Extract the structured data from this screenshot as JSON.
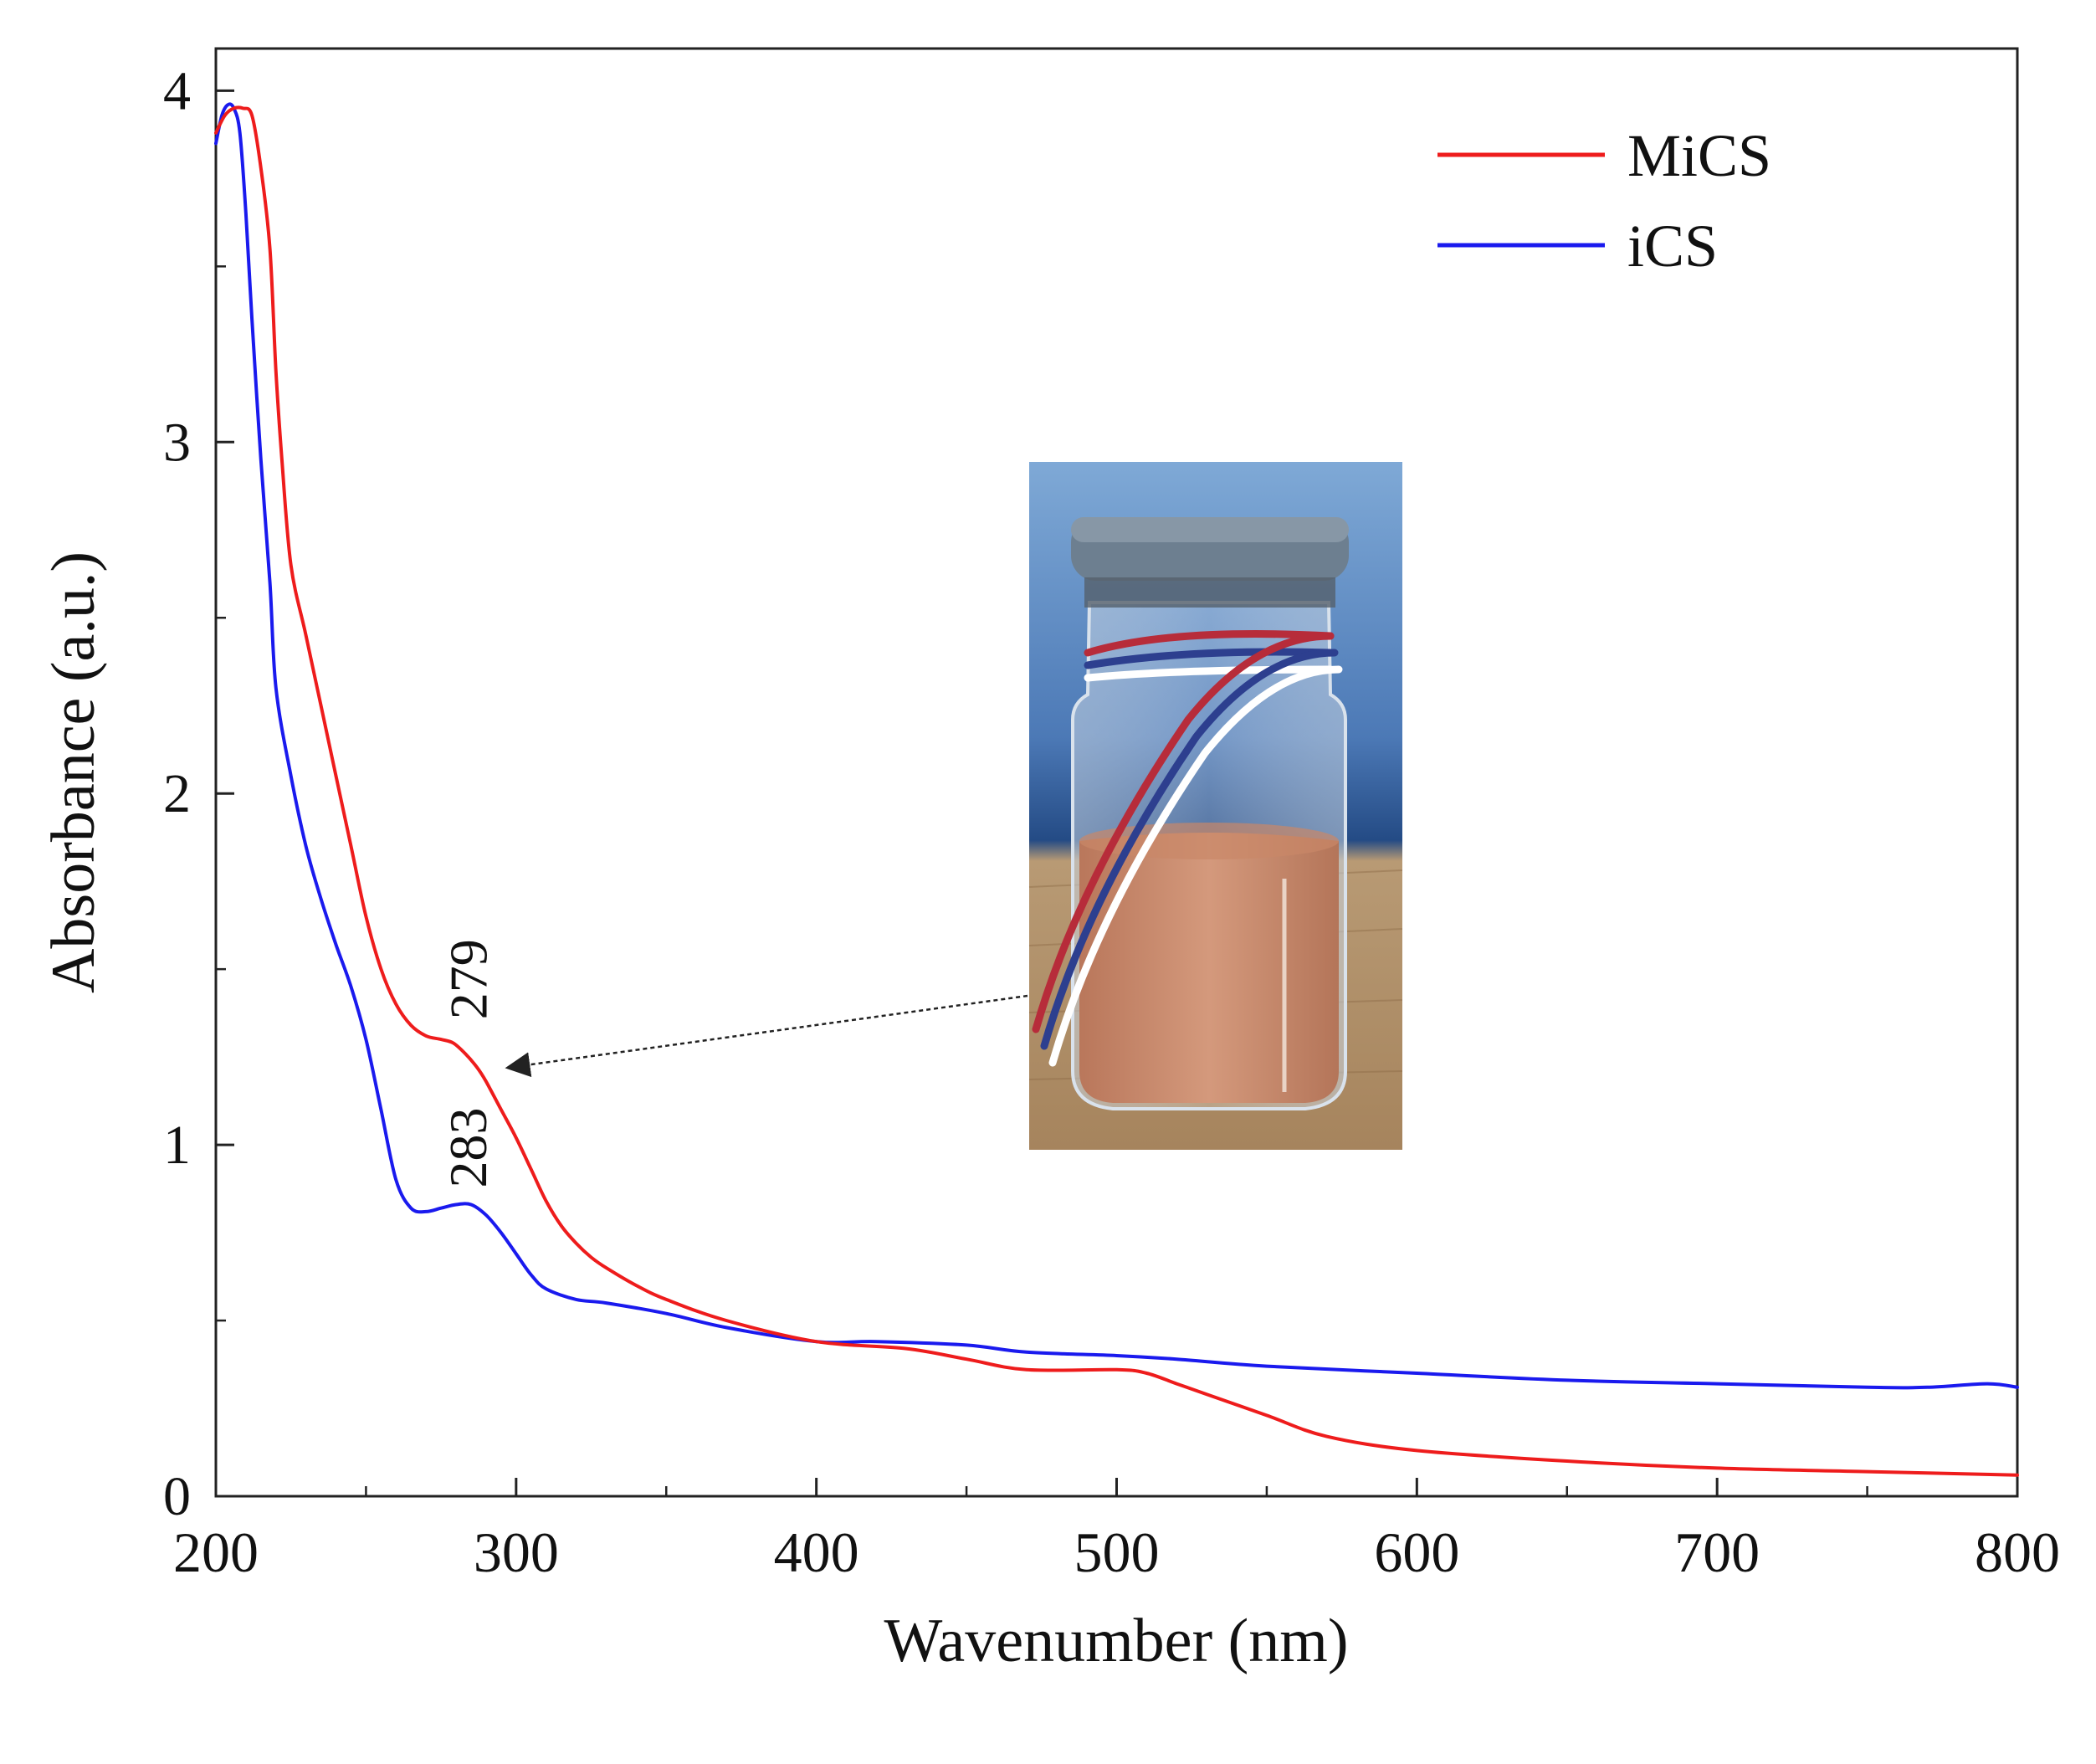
{
  "chart_data": {
    "type": "line",
    "title": "",
    "xlabel": "Wavenumber (nm)",
    "ylabel": "Absorbance (a.u.)",
    "xlim": [
      200,
      800
    ],
    "ylim": [
      0,
      4.12
    ],
    "xticks": [
      200,
      300,
      400,
      500,
      600,
      700,
      800
    ],
    "xtick_labels": [
      "200",
      "300",
      "400",
      "500",
      "600",
      "700",
      "800"
    ],
    "yticks": [
      0,
      1,
      2,
      3,
      4
    ],
    "ytick_labels": [
      "0",
      "1",
      "2",
      "3",
      "4"
    ],
    "grid": false,
    "legend_position": "top-right",
    "series": [
      {
        "name": "MiCS",
        "color": "#ee1c1c",
        "x": [
          200,
          203,
          206,
          209,
          212,
          215,
          218,
          220,
          222,
          225,
          230,
          235,
          240,
          245,
          250,
          255,
          260,
          265,
          270,
          275,
          279,
          283,
          287,
          290,
          295,
          300,
          305,
          310,
          315,
          320,
          325,
          330,
          340,
          350,
          370,
          400,
          430,
          450,
          470,
          500,
          510,
          520,
          530,
          550,
          570,
          600,
          650,
          700,
          750,
          800
        ],
        "y": [
          3.88,
          3.93,
          3.95,
          3.95,
          3.93,
          3.78,
          3.55,
          3.2,
          2.95,
          2.65,
          2.45,
          2.25,
          2.05,
          1.85,
          1.65,
          1.5,
          1.4,
          1.34,
          1.31,
          1.3,
          1.29,
          1.26,
          1.22,
          1.18,
          1.1,
          1.02,
          0.93,
          0.84,
          0.77,
          0.72,
          0.68,
          0.65,
          0.6,
          0.56,
          0.5,
          0.44,
          0.42,
          0.39,
          0.36,
          0.36,
          0.35,
          0.32,
          0.29,
          0.23,
          0.17,
          0.13,
          0.1,
          0.08,
          0.07,
          0.06
        ]
      },
      {
        "name": "iCS",
        "color": "#1a1aee",
        "x": [
          200,
          202,
          204,
          206,
          208,
          210,
          212,
          215,
          218,
          220,
          225,
          230,
          235,
          240,
          245,
          250,
          255,
          260,
          265,
          270,
          275,
          280,
          285,
          290,
          295,
          300,
          305,
          310,
          320,
          330,
          350,
          370,
          400,
          420,
          450,
          470,
          500,
          520,
          550,
          600,
          650,
          700,
          750,
          770,
          790,
          800
        ],
        "y": [
          3.85,
          3.93,
          3.96,
          3.95,
          3.88,
          3.65,
          3.35,
          2.95,
          2.6,
          2.3,
          2.05,
          1.85,
          1.7,
          1.57,
          1.45,
          1.3,
          1.1,
          0.9,
          0.82,
          0.81,
          0.82,
          0.83,
          0.83,
          0.8,
          0.75,
          0.69,
          0.63,
          0.59,
          0.56,
          0.55,
          0.52,
          0.48,
          0.44,
          0.44,
          0.43,
          0.41,
          0.4,
          0.39,
          0.37,
          0.35,
          0.33,
          0.32,
          0.31,
          0.31,
          0.32,
          0.31
        ]
      }
    ],
    "annotations": [
      {
        "text": "279",
        "x": 279,
        "y": 1.29,
        "rotation": -90
      },
      {
        "text": "283",
        "x": 283,
        "y": 0.83,
        "rotation": -90
      }
    ],
    "inset": {
      "description": "photo of glass vial with orange liquid",
      "arrow_to": {
        "x": 296,
        "y": 1.22
      }
    }
  }
}
